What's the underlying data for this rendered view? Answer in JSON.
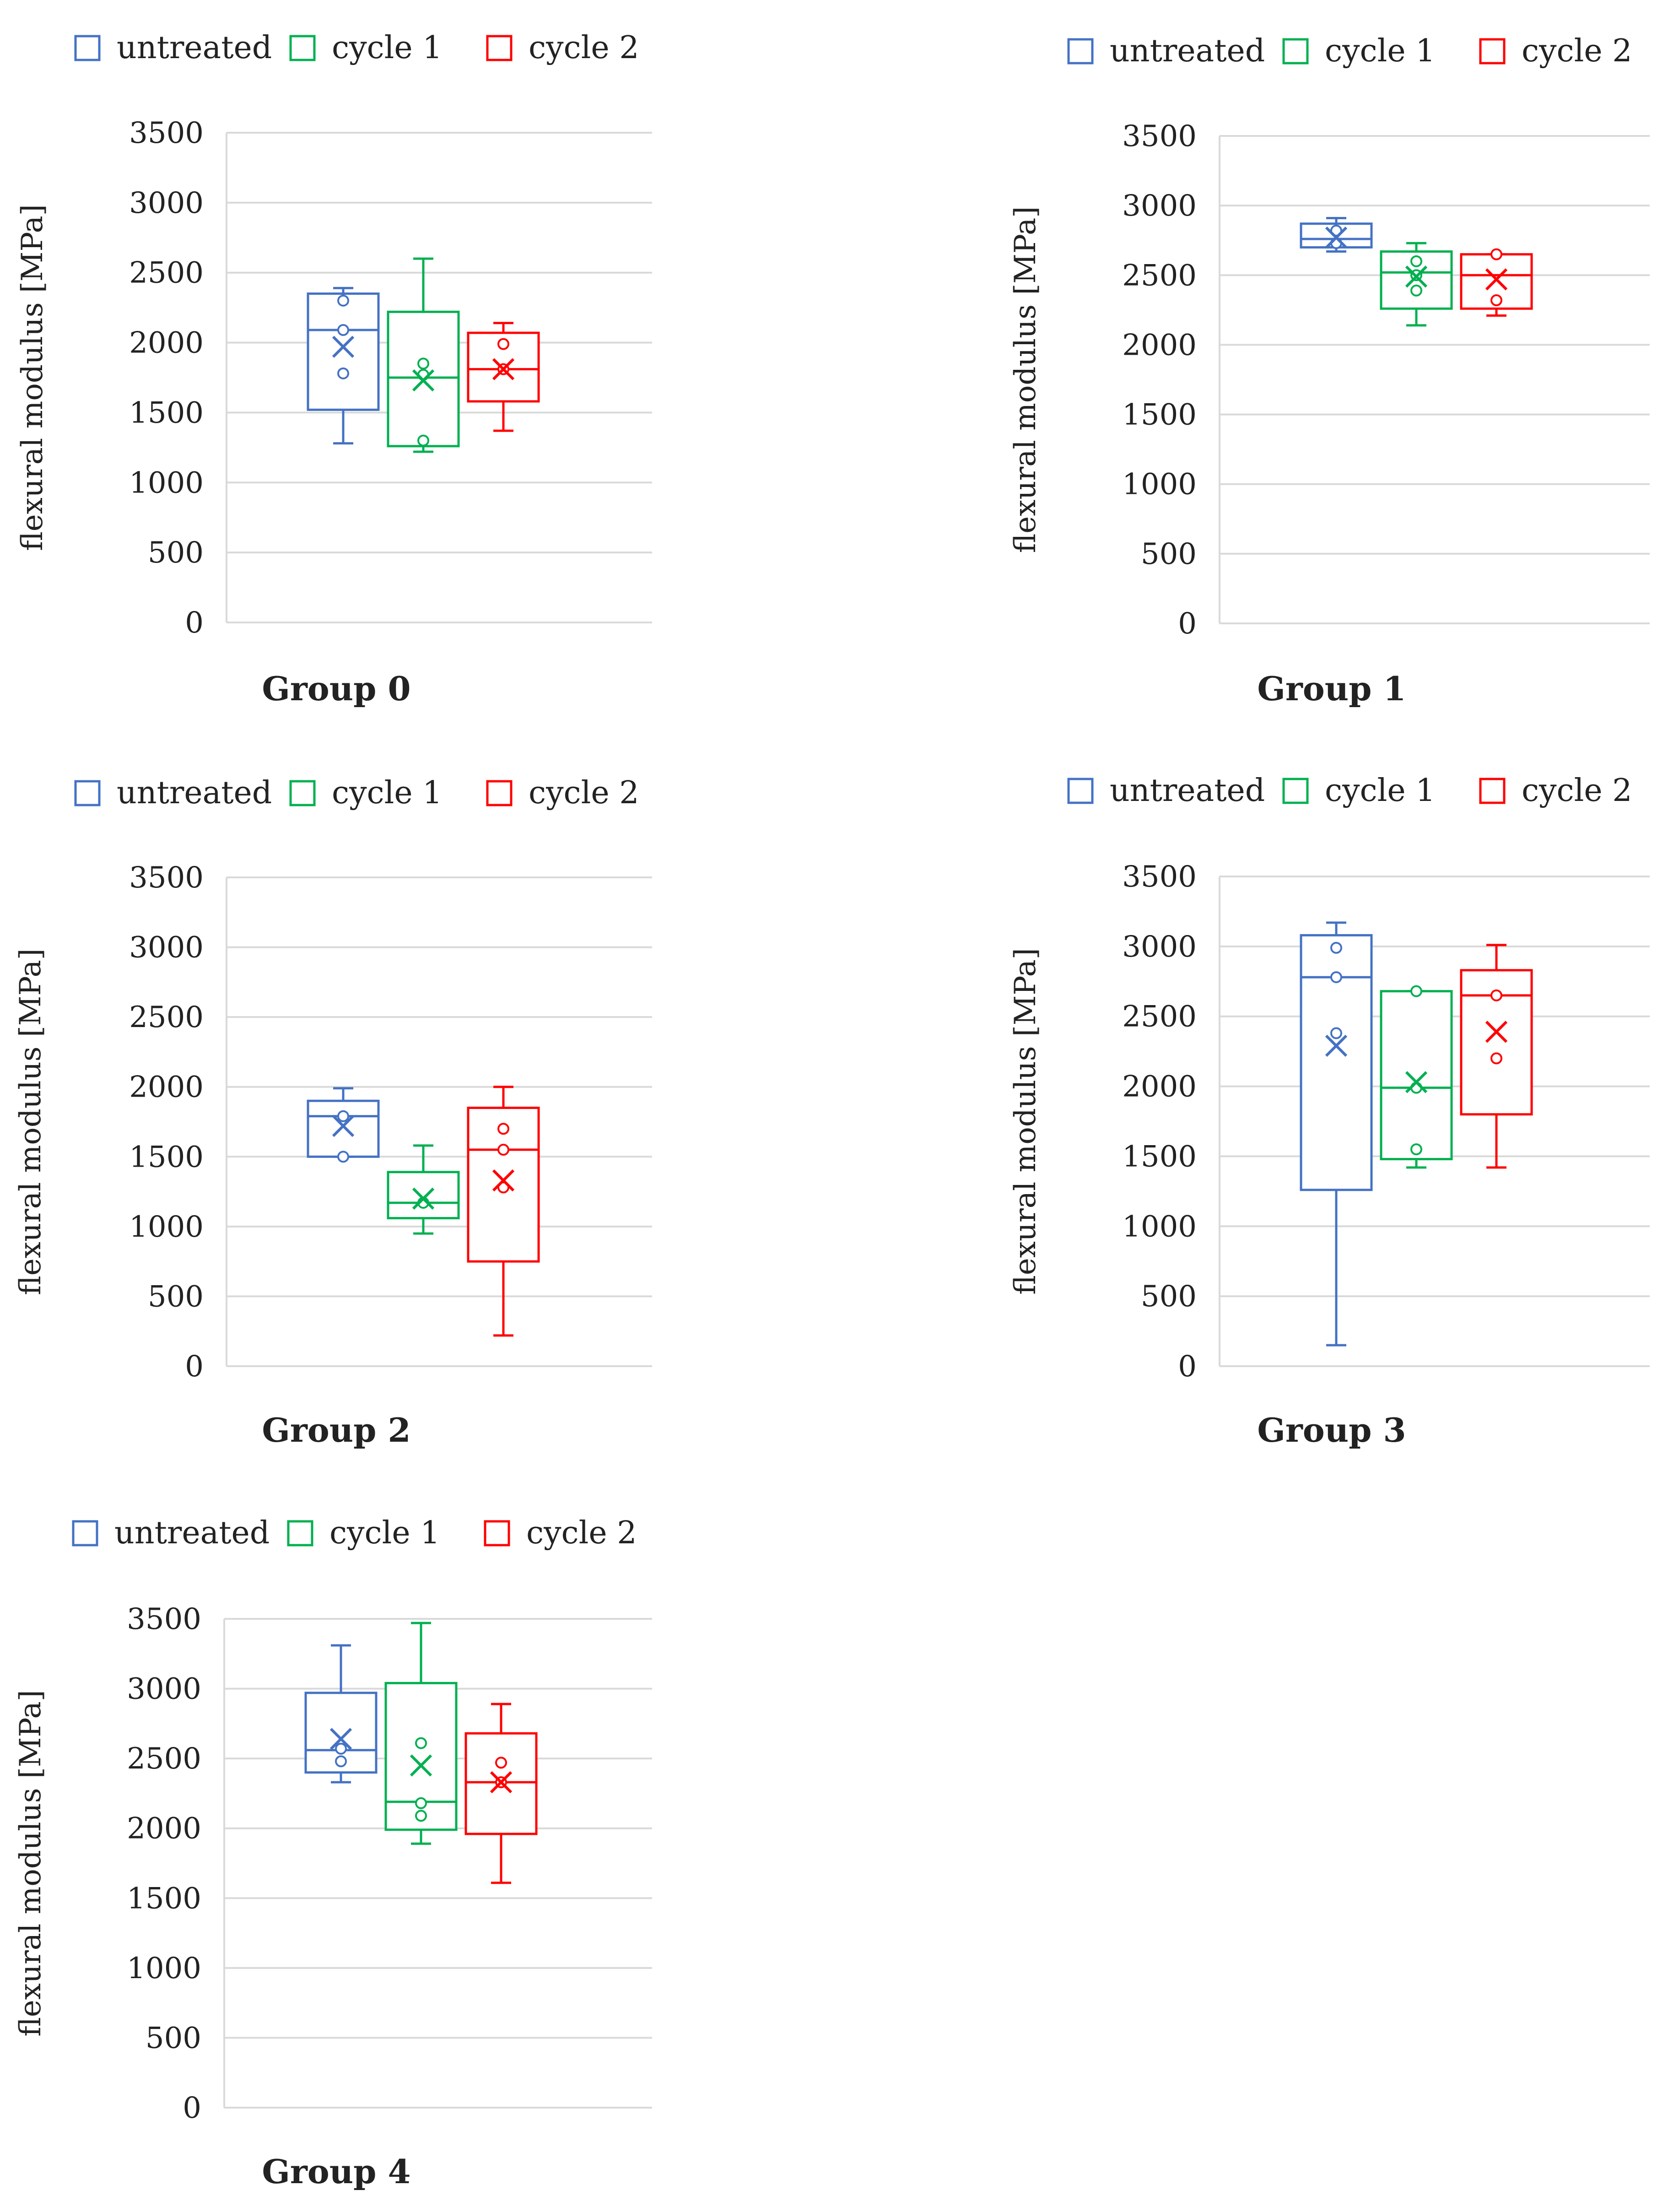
{
  "figure": {
    "legend": [
      "untreated",
      "cycle 1",
      "cycle 2"
    ],
    "ylabel": "flexural modulus [MPa]",
    "yticks": [
      "0",
      "500",
      "1000",
      "1500",
      "2000",
      "2500",
      "3000",
      "3500"
    ],
    "colors": {
      "untreated": "#4472C4",
      "cycle 1": "#00B050",
      "cycle 2": "#FF0000"
    }
  },
  "chart_data": [
    {
      "type": "box",
      "title": "Group 0",
      "ylabel": "flexural modulus [MPa]",
      "ylim": [
        0,
        3500
      ],
      "grid": true,
      "legend_position": "top",
      "series": [
        {
          "name": "untreated",
          "min": 1280,
          "q1": 1520,
          "median": 2090,
          "q3": 2350,
          "max": 2390,
          "mean": 1970,
          "points": [
            2300,
            2090,
            1780
          ]
        },
        {
          "name": "cycle 1",
          "min": 1220,
          "q1": 1260,
          "median": 1750,
          "q3": 2220,
          "max": 2600,
          "mean": 1730,
          "points": [
            1850,
            1770,
            1300
          ]
        },
        {
          "name": "cycle 2",
          "min": 1370,
          "q1": 1580,
          "median": 1810,
          "q3": 2070,
          "max": 2140,
          "mean": 1810,
          "points": [
            1990,
            1810
          ]
        }
      ]
    },
    {
      "type": "box",
      "title": "Group 1",
      "ylabel": "flexural modulus [MPa]",
      "ylim": [
        0,
        3500
      ],
      "grid": true,
      "legend_position": "top",
      "series": [
        {
          "name": "untreated",
          "min": 2670,
          "q1": 2700,
          "median": 2760,
          "q3": 2870,
          "max": 2910,
          "mean": 2770,
          "points": [
            2820,
            2730
          ]
        },
        {
          "name": "cycle 1",
          "min": 2140,
          "q1": 2260,
          "median": 2520,
          "q3": 2670,
          "max": 2730,
          "mean": 2490,
          "points": [
            2600,
            2500,
            2390
          ]
        },
        {
          "name": "cycle 2",
          "min": 2210,
          "q1": 2260,
          "median": 2500,
          "q3": 2650,
          "max": 2650,
          "mean": 2470,
          "points": [
            2650,
            2320
          ]
        }
      ]
    },
    {
      "type": "box",
      "title": "Group 2",
      "ylabel": "flexural modulus [MPa]",
      "ylim": [
        0,
        3500
      ],
      "grid": true,
      "legend_position": "top",
      "series": [
        {
          "name": "untreated",
          "min": 1500,
          "q1": 1500,
          "median": 1790,
          "q3": 1900,
          "max": 1990,
          "mean": 1720,
          "points": [
            1790,
            1500
          ]
        },
        {
          "name": "cycle 1",
          "min": 950,
          "q1": 1060,
          "median": 1170,
          "q3": 1390,
          "max": 1580,
          "mean": 1200,
          "points": [
            1170
          ]
        },
        {
          "name": "cycle 2",
          "min": 220,
          "q1": 750,
          "median": 1550,
          "q3": 1850,
          "max": 2000,
          "mean": 1330,
          "points": [
            1700,
            1550,
            1280
          ]
        }
      ]
    },
    {
      "type": "box",
      "title": "Group 3",
      "ylabel": "flexural modulus [MPa]",
      "ylim": [
        0,
        3500
      ],
      "grid": true,
      "legend_position": "top",
      "series": [
        {
          "name": "untreated",
          "min": 150,
          "q1": 1260,
          "median": 2780,
          "q3": 3080,
          "max": 3170,
          "mean": 2290,
          "points": [
            2990,
            2780,
            2380
          ]
        },
        {
          "name": "cycle 1",
          "min": 1420,
          "q1": 1480,
          "median": 1990,
          "q3": 2680,
          "max": 2680,
          "mean": 2030,
          "points": [
            2680,
            1990,
            1550
          ]
        },
        {
          "name": "cycle 2",
          "min": 1420,
          "q1": 1800,
          "median": 2650,
          "q3": 2830,
          "max": 3010,
          "mean": 2390,
          "points": [
            2650,
            2200
          ]
        }
      ]
    },
    {
      "type": "box",
      "title": "Group 4",
      "ylabel": "flexural modulus [MPa]",
      "ylim": [
        0,
        3500
      ],
      "grid": true,
      "legend_position": "top",
      "series": [
        {
          "name": "untreated",
          "min": 2330,
          "q1": 2400,
          "median": 2560,
          "q3": 2970,
          "max": 3310,
          "mean": 2640,
          "points": [
            2570,
            2480
          ]
        },
        {
          "name": "cycle 1",
          "min": 1890,
          "q1": 1990,
          "median": 2190,
          "q3": 3040,
          "max": 3470,
          "mean": 2450,
          "points": [
            2610,
            2180,
            2090
          ]
        },
        {
          "name": "cycle 2",
          "min": 1610,
          "q1": 1960,
          "median": 2330,
          "q3": 2680,
          "max": 2890,
          "mean": 2330,
          "points": [
            2470,
            2330
          ]
        }
      ]
    }
  ]
}
